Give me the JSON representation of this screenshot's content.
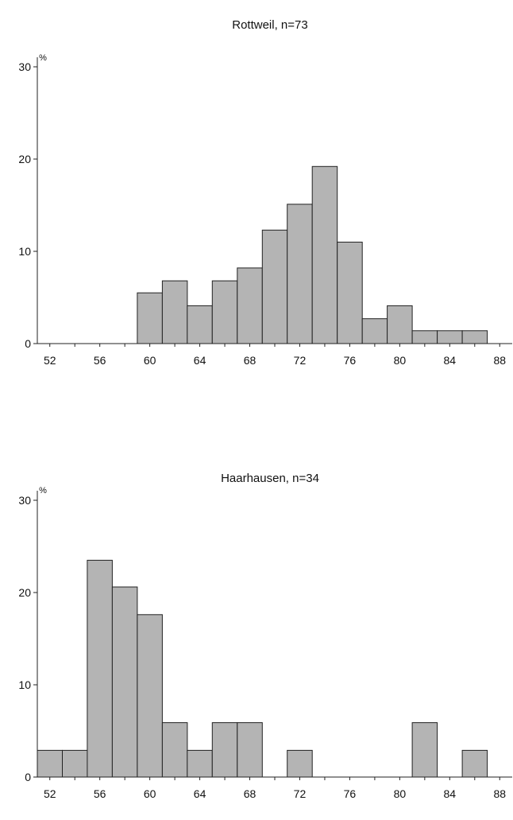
{
  "chart_data": [
    {
      "type": "bar",
      "title": "Rottweil, n=73",
      "ylabel": "%",
      "xlabel": "",
      "ylim": [
        0,
        30
      ],
      "yticks": [
        "0",
        "10",
        "20",
        "30"
      ],
      "xlim": [
        51,
        89
      ],
      "xticks": [
        "52",
        "56",
        "60",
        "64",
        "68",
        "72",
        "76",
        "80",
        "84",
        "88"
      ],
      "bin_width": 2,
      "bins": [
        {
          "x0": 59,
          "x1": 61,
          "value": 5.5
        },
        {
          "x0": 61,
          "x1": 63,
          "value": 6.8
        },
        {
          "x0": 63,
          "x1": 65,
          "value": 4.1
        },
        {
          "x0": 65,
          "x1": 67,
          "value": 6.8
        },
        {
          "x0": 67,
          "x1": 69,
          "value": 8.2
        },
        {
          "x0": 69,
          "x1": 71,
          "value": 12.3
        },
        {
          "x0": 71,
          "x1": 73,
          "value": 15.1
        },
        {
          "x0": 73,
          "x1": 75,
          "value": 19.2
        },
        {
          "x0": 75,
          "x1": 77,
          "value": 11.0
        },
        {
          "x0": 77,
          "x1": 79,
          "value": 2.7
        },
        {
          "x0": 79,
          "x1": 81,
          "value": 4.1
        },
        {
          "x0": 81,
          "x1": 83,
          "value": 1.4
        },
        {
          "x0": 83,
          "x1": 85,
          "value": 1.4
        },
        {
          "x0": 85,
          "x1": 87,
          "value": 1.4
        }
      ],
      "grid": false
    },
    {
      "type": "bar",
      "title": "Haarhausen, n=34",
      "ylabel": "%",
      "xlabel": "",
      "ylim": [
        0,
        30
      ],
      "yticks": [
        "0",
        "10",
        "20",
        "30"
      ],
      "xlim": [
        51,
        89
      ],
      "xticks": [
        "52",
        "56",
        "60",
        "64",
        "68",
        "72",
        "76",
        "80",
        "84",
        "88"
      ],
      "bin_width": 2,
      "bins": [
        {
          "x0": 51,
          "x1": 53,
          "value": 2.9
        },
        {
          "x0": 53,
          "x1": 55,
          "value": 2.9
        },
        {
          "x0": 55,
          "x1": 57,
          "value": 23.5
        },
        {
          "x0": 57,
          "x1": 59,
          "value": 20.6
        },
        {
          "x0": 59,
          "x1": 61,
          "value": 17.6
        },
        {
          "x0": 61,
          "x1": 63,
          "value": 5.9
        },
        {
          "x0": 63,
          "x1": 65,
          "value": 2.9
        },
        {
          "x0": 65,
          "x1": 67,
          "value": 5.9
        },
        {
          "x0": 67,
          "x1": 69,
          "value": 5.9
        },
        {
          "x0": 71,
          "x1": 73,
          "value": 2.9
        },
        {
          "x0": 81,
          "x1": 83,
          "value": 5.9
        },
        {
          "x0": 85,
          "x1": 87,
          "value": 2.9
        }
      ],
      "grid": false
    }
  ],
  "colors": {
    "bar_fill": "#b4b4b4",
    "bar_stroke": "#222222",
    "axis": "#222222"
  }
}
